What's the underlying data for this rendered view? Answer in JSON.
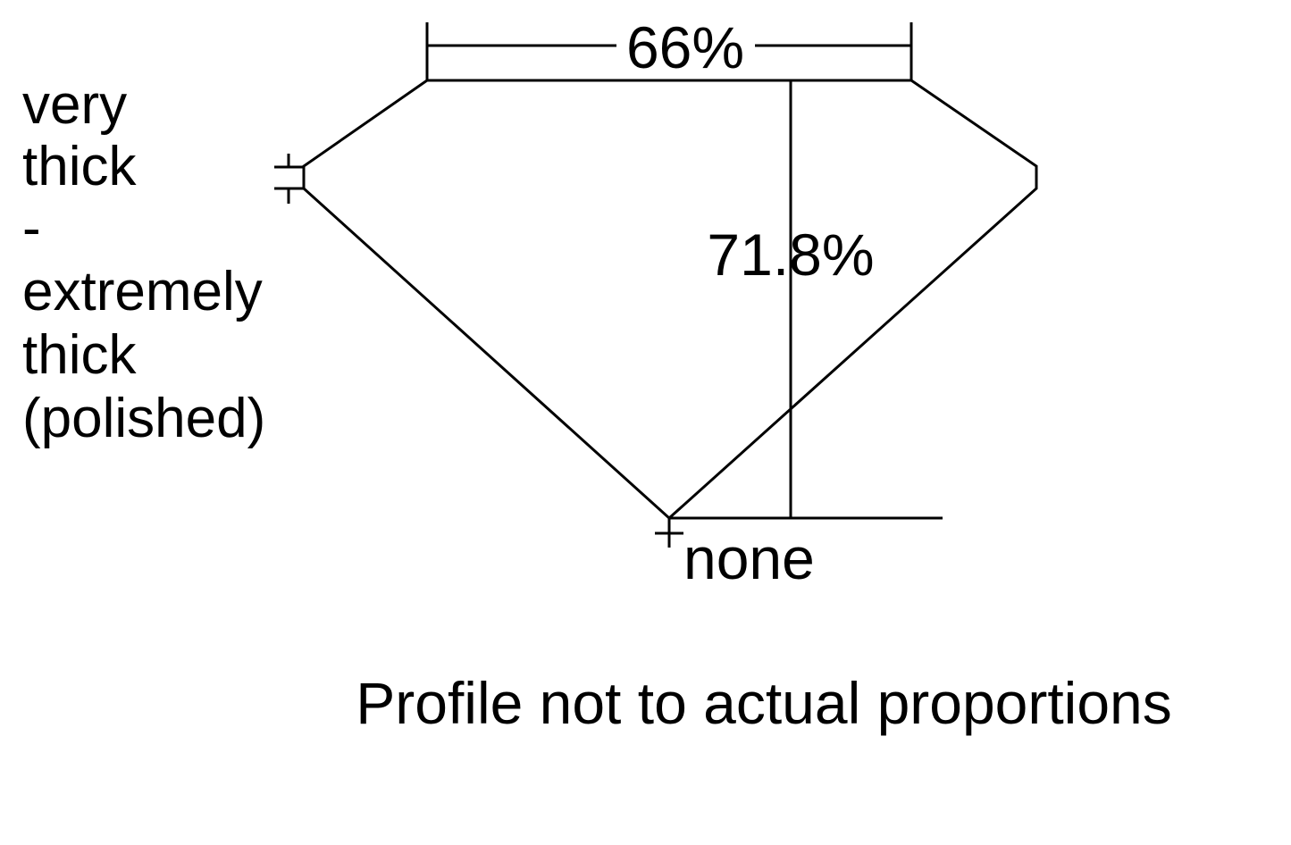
{
  "table_percent": "66%",
  "depth_percent": "71.8%",
  "girdle_label": [
    "very",
    "thick",
    "-",
    "extremely",
    "thick",
    "(polished)"
  ],
  "culet_label": "none",
  "footnote": "Profile not to actual proportions"
}
